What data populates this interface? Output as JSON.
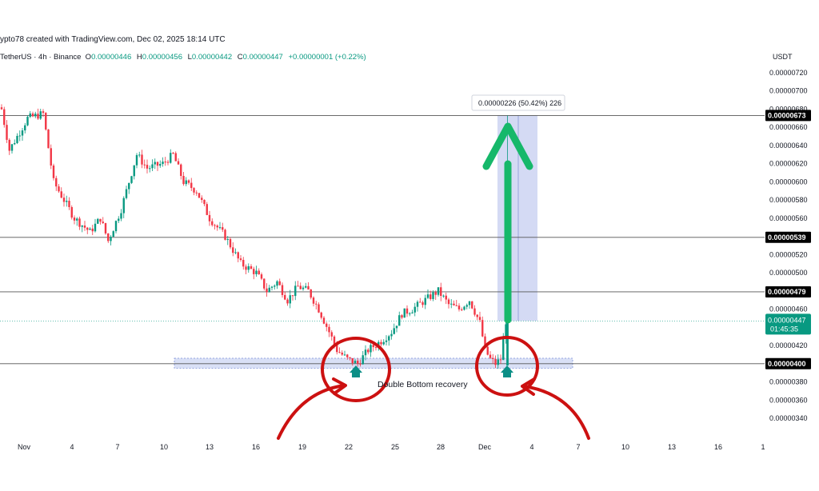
{
  "attribution": "ypto78 created with TradingView.com, Dec 02, 2025 18:14 UTC",
  "symbol": {
    "title": "TetherUS · 4h · Binance",
    "ohlc": [
      {
        "key": "O",
        "value": "0.00000446"
      },
      {
        "key": "H",
        "value": "0.00000456"
      },
      {
        "key": "L",
        "value": "0.00000442"
      },
      {
        "key": "C",
        "value": "0.00000447"
      }
    ],
    "change": "+0.00000001 (+0.22%)"
  },
  "currency": "USDT",
  "colors": {
    "up": "#089981",
    "down": "#f23645",
    "zone": "#c9d3f2",
    "measure": "#c5cdf0",
    "arrow": "#16b86a",
    "circle": "#cc1111"
  },
  "chart_data": {
    "type": "candlestick",
    "ylim": [
      3.3e-06,
      7.3e-06
    ],
    "y_ticks": [
      "0.00000340",
      "0.00000360",
      "0.00000380",
      "0.00000420",
      "0.00000440",
      "0.00000460",
      "0.00000500",
      "0.00000520",
      "0.00000560",
      "0.00000580",
      "0.00000600",
      "0.00000620",
      "0.00000640",
      "0.00000660",
      "0.00000680",
      "0.00000700",
      "0.00000720"
    ],
    "x_ticks": [
      "Nov",
      "4",
      "7",
      "10",
      "13",
      "16",
      "19",
      "22",
      "25",
      "28",
      "Dec",
      "4",
      "7",
      "10",
      "13",
      "16",
      "1"
    ],
    "horizontal_levels": [
      {
        "value": 6.73e-06,
        "label": "0.00000673"
      },
      {
        "value": 5.39e-06,
        "label": "0.00000539"
      },
      {
        "value": 4.79e-06,
        "label": "0.00000479"
      },
      {
        "value": 4e-06,
        "label": "0.00000400"
      }
    ],
    "current_price": {
      "value": 4.47e-06,
      "label": "0.00000447",
      "countdown": "01:45:35"
    },
    "support_zone": {
      "low": 3.95e-06,
      "high": 4.06e-06
    },
    "measure": {
      "from": 4.47e-06,
      "to": 6.73e-06,
      "label": "0.00000226 (50.42%) 226"
    },
    "annotation": "Double Bottom recovery",
    "series": [
      {
        "name": "",
        "waypoints": [
          [
            0,
            6.8
          ],
          [
            3,
            6.35
          ],
          [
            10,
            6.7
          ],
          [
            16,
            6.75
          ],
          [
            20,
            6.0
          ],
          [
            28,
            5.6
          ],
          [
            34,
            5.45
          ],
          [
            38,
            5.6
          ],
          [
            41,
            5.35
          ],
          [
            46,
            5.7
          ],
          [
            52,
            6.3
          ],
          [
            56,
            6.15
          ],
          [
            62,
            6.2
          ],
          [
            66,
            6.3
          ],
          [
            70,
            6.0
          ],
          [
            75,
            5.9
          ],
          [
            80,
            5.6
          ],
          [
            86,
            5.4
          ],
          [
            92,
            5.1
          ],
          [
            98,
            5.0
          ],
          [
            102,
            4.8
          ],
          [
            106,
            4.9
          ],
          [
            110,
            4.7
          ],
          [
            114,
            4.85
          ],
          [
            118,
            4.8
          ],
          [
            122,
            4.6
          ],
          [
            126,
            4.35
          ],
          [
            129,
            4.15
          ],
          [
            133,
            4.05
          ],
          [
            137,
            4.0
          ],
          [
            141,
            4.15
          ],
          [
            146,
            4.25
          ],
          [
            150,
            4.35
          ],
          [
            154,
            4.55
          ],
          [
            158,
            4.6
          ],
          [
            163,
            4.7
          ],
          [
            168,
            4.8
          ],
          [
            172,
            4.65
          ],
          [
            176,
            4.6
          ],
          [
            180,
            4.7
          ],
          [
            184,
            4.45
          ],
          [
            186,
            4.15
          ],
          [
            188,
            4.05
          ],
          [
            190,
            4.0
          ],
          [
            192,
            4.05
          ],
          [
            194,
            4.47
          ]
        ]
      }
    ]
  }
}
